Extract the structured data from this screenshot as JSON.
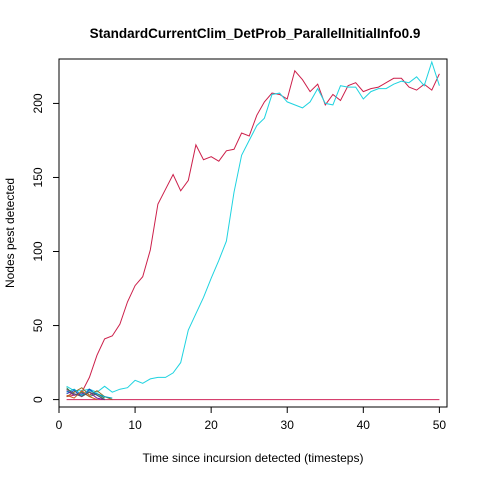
{
  "chart_data": {
    "type": "line",
    "title": "StandardCurrentClim_DetProb_ParallelInitialInfo0.9",
    "xlabel": "Time since incursion detected (timesteps)",
    "ylabel": "Nodes pest detected",
    "xlim": [
      0,
      51
    ],
    "ylim": [
      -5,
      230
    ],
    "x_ticks": [
      0,
      10,
      20,
      30,
      40,
      50
    ],
    "y_ticks": [
      0,
      50,
      100,
      150,
      200
    ],
    "grid": false,
    "legend": "none",
    "series": [
      {
        "color": "#e7298a",
        "color_hex": "#cc1f4a",
        "x": [
          1,
          2,
          3,
          4,
          5,
          6,
          7,
          8,
          9,
          10,
          11,
          12,
          13,
          14,
          15,
          16,
          17,
          18,
          19,
          20,
          21,
          22,
          23,
          24,
          25,
          26,
          27,
          28,
          29,
          30,
          31,
          32,
          33,
          34,
          35,
          36,
          37,
          38,
          39,
          40,
          41,
          42,
          43,
          44,
          45,
          46,
          47,
          48,
          49,
          50
        ],
        "y": [
          2,
          3,
          5,
          15,
          30,
          41,
          43,
          51,
          66,
          77,
          83,
          101,
          132,
          142,
          152,
          141,
          148,
          172,
          162,
          164,
          161,
          168,
          169,
          180,
          178,
          192,
          201,
          207,
          206,
          203,
          222,
          216,
          208,
          213,
          199,
          206,
          202,
          212,
          214,
          208,
          210,
          211,
          214,
          217,
          217,
          211,
          209,
          213,
          209,
          220
        ]
      },
      {
        "color": "#00e5e5",
        "color_hex": "#1fd3e0",
        "x": [
          1,
          2,
          3,
          4,
          5,
          6,
          7,
          8,
          9,
          10,
          11,
          12,
          13,
          14,
          15,
          16,
          17,
          18,
          19,
          20,
          21,
          22,
          23,
          24,
          25,
          26,
          27,
          28,
          29,
          30,
          31,
          32,
          33,
          34,
          35,
          36,
          37,
          38,
          39,
          40,
          41,
          42,
          43,
          44,
          45,
          46,
          47,
          48,
          49,
          50
        ],
        "y": [
          9,
          6,
          6,
          7,
          5,
          9,
          5,
          7,
          8,
          13,
          11,
          14,
          15,
          15,
          18,
          25,
          47,
          58,
          69,
          82,
          94,
          107,
          140,
          165,
          175,
          185,
          190,
          206,
          207,
          201,
          199,
          197,
          201,
          210,
          200,
          199,
          212,
          211,
          211,
          203,
          208,
          210,
          210,
          213,
          215,
          214,
          218,
          212,
          228,
          212
        ]
      },
      {
        "color": "#e7298a",
        "color_hex": "#d0245a",
        "x": [
          1,
          2,
          3,
          4,
          5,
          6,
          7,
          8,
          9,
          10,
          11,
          12,
          13,
          14,
          15,
          16,
          17,
          18,
          19,
          20,
          21,
          22,
          23,
          24,
          25,
          26,
          27,
          28,
          29,
          30,
          31,
          32,
          33,
          34,
          35,
          36,
          37,
          38,
          39,
          40,
          41,
          42,
          43,
          44,
          45,
          46,
          47,
          48,
          49,
          50
        ],
        "y": [
          0,
          0,
          0,
          0,
          0,
          0,
          0,
          0,
          0,
          0,
          0,
          0,
          0,
          0,
          0,
          0,
          0,
          0,
          0,
          0,
          0,
          0,
          0,
          0,
          0,
          0,
          0,
          0,
          0,
          0,
          0,
          0,
          0,
          0,
          0,
          0,
          0,
          0,
          0,
          0,
          0,
          0,
          0,
          0,
          0,
          0,
          0,
          0,
          0,
          0
        ]
      },
      {
        "color_hex": "#2e8b57",
        "x": [
          1,
          2,
          3,
          4,
          5,
          6
        ],
        "y": [
          8,
          3,
          5,
          2,
          4,
          1
        ]
      },
      {
        "color_hex": "#1f3fbf",
        "x": [
          1,
          2,
          3,
          4,
          5,
          6
        ],
        "y": [
          4,
          6,
          2,
          7,
          3,
          0
        ]
      },
      {
        "color_hex": "#9a6b1f",
        "x": [
          1,
          2,
          3,
          4,
          5,
          6,
          7
        ],
        "y": [
          2,
          5,
          8,
          3,
          6,
          2,
          0
        ]
      },
      {
        "color_hex": "#7a1fa2",
        "x": [
          1,
          2,
          3,
          4,
          5,
          6
        ],
        "y": [
          6,
          3,
          4,
          5,
          1,
          0
        ]
      },
      {
        "color_hex": "#00a0c8",
        "x": [
          1,
          2,
          3,
          4,
          5,
          6,
          7
        ],
        "y": [
          5,
          7,
          3,
          6,
          4,
          2,
          1
        ]
      },
      {
        "color_hex": "#c85a1f",
        "x": [
          1,
          2,
          3,
          4,
          5
        ],
        "y": [
          3,
          1,
          6,
          2,
          0
        ]
      },
      {
        "color_hex": "#5a5a5a",
        "x": [
          1,
          2,
          3,
          4,
          5,
          6
        ],
        "y": [
          7,
          4,
          2,
          5,
          3,
          0
        ]
      }
    ]
  }
}
